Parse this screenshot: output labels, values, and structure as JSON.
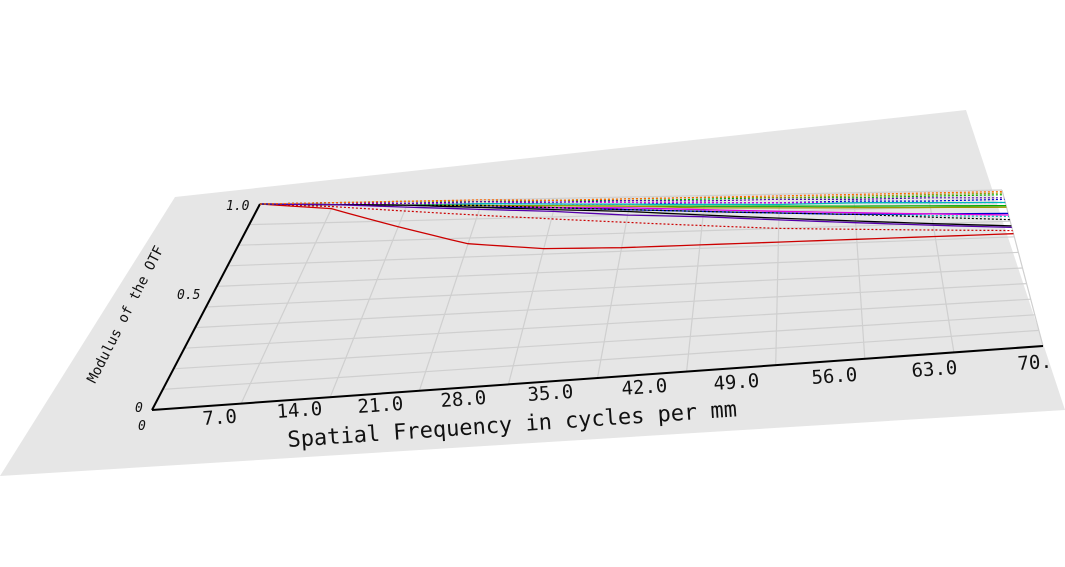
{
  "chart_data": {
    "type": "line",
    "title": "",
    "xlabel": "Spatial Frequency in cycles per mm",
    "ylabel": "Modulus of the OTF",
    "xlim": [
      0,
      70
    ],
    "ylim": [
      0,
      1
    ],
    "x_ticks": [
      "0",
      "7.0",
      "14.0",
      "21.0",
      "28.0",
      "35.0",
      "42.0",
      "49.0",
      "56.0",
      "63.0",
      "70."
    ],
    "y_ticks": [
      "0",
      "0.5",
      "1.0"
    ],
    "grid": true,
    "x": [
      0,
      7,
      14,
      21,
      28,
      35,
      42,
      49,
      56,
      63,
      70
    ],
    "series": [
      {
        "color": "#cc0000",
        "style": "solid",
        "values": [
          1.0,
          0.97,
          0.87,
          0.77,
          0.73,
          0.72,
          0.72,
          0.72,
          0.72,
          0.72,
          0.72
        ]
      },
      {
        "color": "#cc0000",
        "style": "dotted",
        "values": [
          1.0,
          0.98,
          0.95,
          0.92,
          0.89,
          0.86,
          0.83,
          0.8,
          0.78,
          0.76,
          0.74
        ]
      },
      {
        "color": "#0000cc",
        "style": "solid",
        "values": [
          1.0,
          0.99,
          0.98,
          0.96,
          0.95,
          0.93,
          0.91,
          0.89,
          0.87,
          0.86,
          0.85
        ]
      },
      {
        "color": "#0000cc",
        "style": "dotted",
        "values": [
          1.0,
          0.99,
          0.99,
          0.98,
          0.97,
          0.96,
          0.96,
          0.95,
          0.95,
          0.94,
          0.94
        ]
      },
      {
        "color": "#00aa00",
        "style": "solid",
        "values": [
          1.0,
          0.99,
          0.98,
          0.97,
          0.96,
          0.95,
          0.94,
          0.93,
          0.92,
          0.91,
          0.9
        ]
      },
      {
        "color": "#00aa00",
        "style": "dotted",
        "values": [
          1.0,
          1.0,
          0.99,
          0.99,
          0.99,
          0.98,
          0.98,
          0.98,
          0.97,
          0.97,
          0.97
        ]
      },
      {
        "color": "#dd00dd",
        "style": "solid",
        "values": [
          1.0,
          0.99,
          0.98,
          0.97,
          0.95,
          0.94,
          0.92,
          0.9,
          0.88,
          0.86,
          0.84
        ]
      },
      {
        "color": "#dd00dd",
        "style": "dotted",
        "values": [
          1.0,
          0.99,
          0.99,
          0.98,
          0.98,
          0.97,
          0.96,
          0.95,
          0.94,
          0.93,
          0.92
        ]
      },
      {
        "color": "#00bbbb",
        "style": "solid",
        "values": [
          1.0,
          0.99,
          0.98,
          0.98,
          0.97,
          0.96,
          0.95,
          0.94,
          0.94,
          0.93,
          0.92
        ]
      },
      {
        "color": "#00bbbb",
        "style": "dotted",
        "values": [
          1.0,
          0.99,
          0.98,
          0.97,
          0.95,
          0.93,
          0.91,
          0.89,
          0.87,
          0.85,
          0.83
        ]
      },
      {
        "color": "#999900",
        "style": "solid",
        "values": [
          1.0,
          0.99,
          0.98,
          0.97,
          0.96,
          0.95,
          0.93,
          0.92,
          0.91,
          0.9,
          0.89
        ]
      },
      {
        "color": "#999900",
        "style": "dotted",
        "values": [
          1.0,
          1.0,
          1.0,
          0.99,
          0.99,
          0.99,
          0.99,
          0.98,
          0.98,
          0.98,
          0.98
        ]
      },
      {
        "color": "#000000",
        "style": "solid",
        "values": [
          1.0,
          0.99,
          0.98,
          0.96,
          0.94,
          0.92,
          0.89,
          0.86,
          0.83,
          0.8,
          0.77
        ]
      },
      {
        "color": "#000000",
        "style": "dotted",
        "values": [
          1.0,
          0.99,
          0.98,
          0.97,
          0.95,
          0.93,
          0.91,
          0.89,
          0.87,
          0.84,
          0.81
        ]
      },
      {
        "color": "#5500aa",
        "style": "solid",
        "values": [
          1.0,
          0.99,
          0.97,
          0.95,
          0.93,
          0.9,
          0.88,
          0.85,
          0.82,
          0.79,
          0.76
        ]
      },
      {
        "color": "#5500aa",
        "style": "dotted",
        "values": [
          1.0,
          1.0,
          0.99,
          0.99,
          0.98,
          0.98,
          0.97,
          0.97,
          0.96,
          0.96,
          0.95
        ]
      },
      {
        "color": "#ff6600",
        "style": "dotted",
        "values": [
          1.0,
          1.0,
          1.0,
          1.0,
          0.99,
          0.99,
          0.99,
          0.99,
          0.99,
          0.99,
          0.99
        ]
      }
    ]
  }
}
